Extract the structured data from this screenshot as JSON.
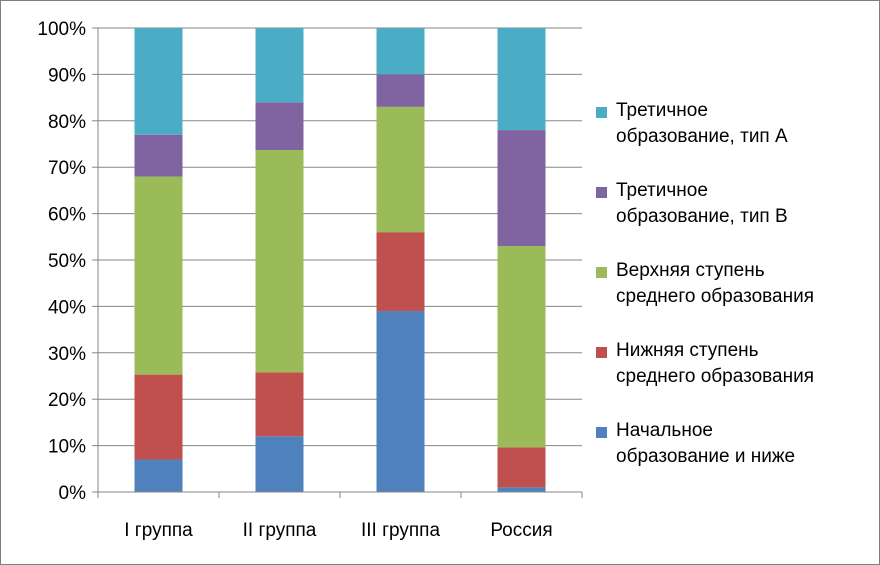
{
  "chart_data": {
    "type": "bar",
    "stacked": true,
    "percent": true,
    "categories": [
      "I группа",
      "II группа",
      "III группа",
      "Россия"
    ],
    "ylim": [
      0,
      100
    ],
    "yticks": [
      "0%",
      "10%",
      "20%",
      "30%",
      "40%",
      "50%",
      "60%",
      "70%",
      "80%",
      "90%",
      "100%"
    ],
    "grid": true,
    "legend_position": "right",
    "series": [
      {
        "name": "Начальное образование и ниже",
        "color": "#4F81BD",
        "values": [
          7,
          12,
          39,
          1
        ]
      },
      {
        "name": "Нижняя ступень среднего образования",
        "color": "#C0504D",
        "values": [
          18.3,
          13.8,
          17,
          8.6
        ]
      },
      {
        "name": "Верхняя ступень среднего образования",
        "color": "#9BBB59",
        "values": [
          42.7,
          47.9,
          27,
          43.4
        ]
      },
      {
        "name": "Третичное образование, тип В",
        "color": "#8064A2",
        "values": [
          9,
          10.3,
          7,
          25
        ]
      },
      {
        "name": "Третичное образование, тип А",
        "color": "#4BACC6",
        "values": [
          23,
          16,
          10,
          22
        ]
      }
    ]
  },
  "legend": {
    "items": [
      {
        "label": "Третичное\nобразование, тип А",
        "color": "#4BACC6"
      },
      {
        "label": "Третичное\nобразование, тип В",
        "color": "#8064A2"
      },
      {
        "label": "Верхняя ступень\nсреднего образования",
        "color": "#9BBB59"
      },
      {
        "label": "Нижняя ступень\nсреднего образования",
        "color": "#C0504D"
      },
      {
        "label": "Начальное\nобразование и ниже",
        "color": "#4F81BD"
      }
    ]
  }
}
